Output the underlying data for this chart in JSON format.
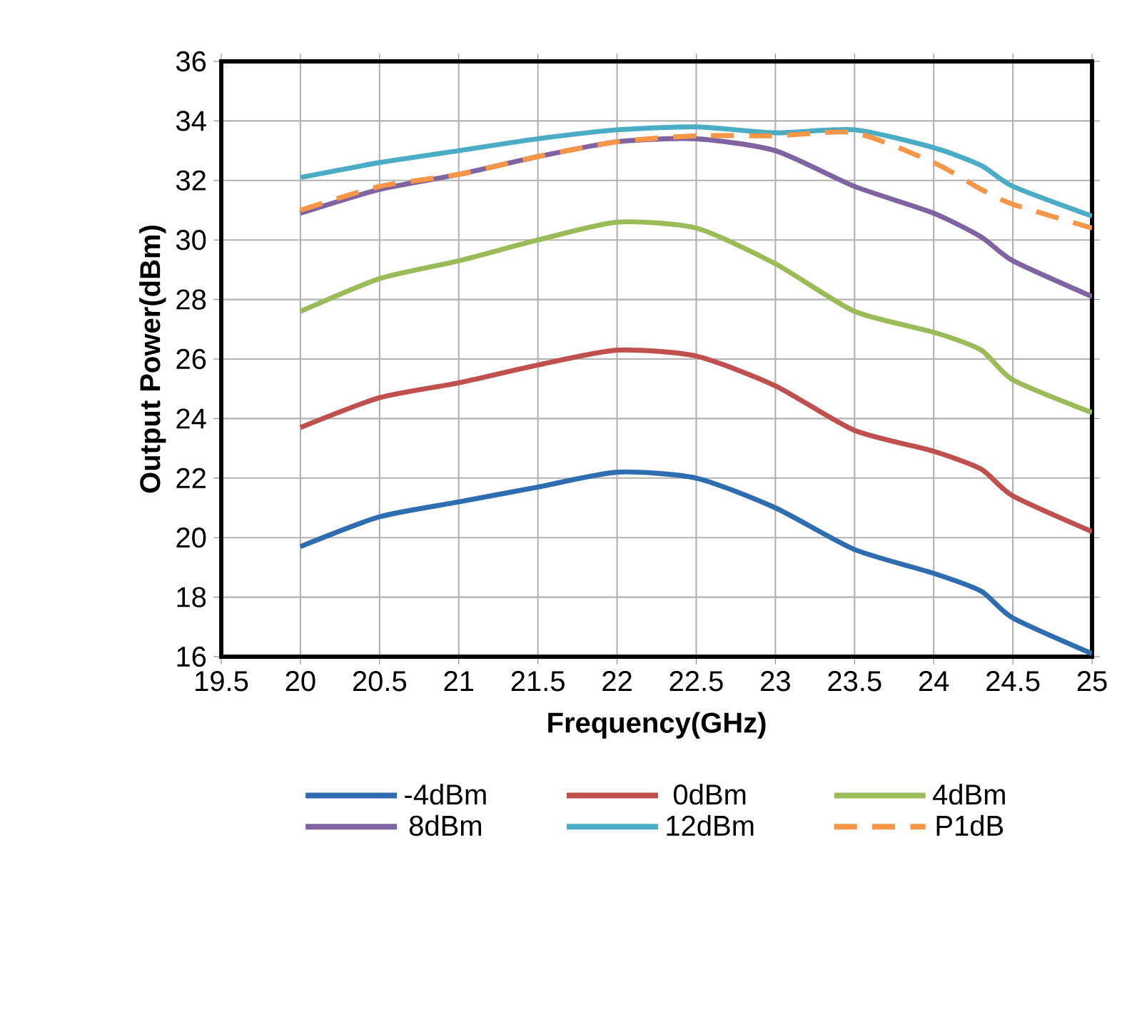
{
  "chart_data": {
    "type": "line",
    "xlabel": "Frequency(GHz)",
    "ylabel": "Output Power(dBm)",
    "x": [
      20,
      20.5,
      21,
      21.5,
      22,
      22.5,
      23,
      23.5,
      24,
      24.3,
      24.5,
      25
    ],
    "xlim": [
      19.5,
      25
    ],
    "xticks": [
      19.5,
      20,
      20.5,
      21,
      21.5,
      22,
      22.5,
      23,
      23.5,
      24,
      24.5,
      25
    ],
    "ylim": [
      16,
      36
    ],
    "yticks": [
      16,
      18,
      20,
      22,
      24,
      26,
      28,
      30,
      32,
      34,
      36
    ],
    "grid": true,
    "legend": "bottom",
    "marker": "none",
    "series": [
      {
        "name": "-4dBm",
        "color": "#2e6db0",
        "values": [
          19.7,
          20.7,
          21.2,
          21.7,
          22.2,
          22.0,
          21.0,
          19.6,
          18.8,
          18.2,
          17.3,
          16.1
        ]
      },
      {
        "name": "0dBm",
        "color": "#c0504d",
        "values": [
          23.7,
          24.7,
          25.2,
          25.8,
          26.3,
          26.1,
          25.1,
          23.6,
          22.9,
          22.3,
          21.4,
          20.2
        ]
      },
      {
        "name": "4dBm",
        "color": "#9bbb59",
        "values": [
          27.6,
          28.7,
          29.3,
          30.0,
          30.6,
          30.4,
          29.2,
          27.6,
          26.9,
          26.3,
          25.3,
          24.2
        ]
      },
      {
        "name": "8dBm",
        "color": "#8064a2",
        "values": [
          30.9,
          31.7,
          32.2,
          32.8,
          33.3,
          33.4,
          33.0,
          31.8,
          30.9,
          30.1,
          29.3,
          28.1
        ]
      },
      {
        "name": "12dBm",
        "color": "#4bacc6",
        "values": [
          32.1,
          32.6,
          33.0,
          33.4,
          33.7,
          33.8,
          33.6,
          33.7,
          33.1,
          32.5,
          31.8,
          30.8
        ]
      },
      {
        "name": "P1dB",
        "color": "#f79646",
        "line_style": "dashed",
        "values": [
          31.0,
          31.8,
          32.2,
          32.8,
          33.3,
          33.5,
          33.5,
          33.6,
          32.6,
          31.7,
          31.2,
          30.4
        ]
      }
    ]
  }
}
